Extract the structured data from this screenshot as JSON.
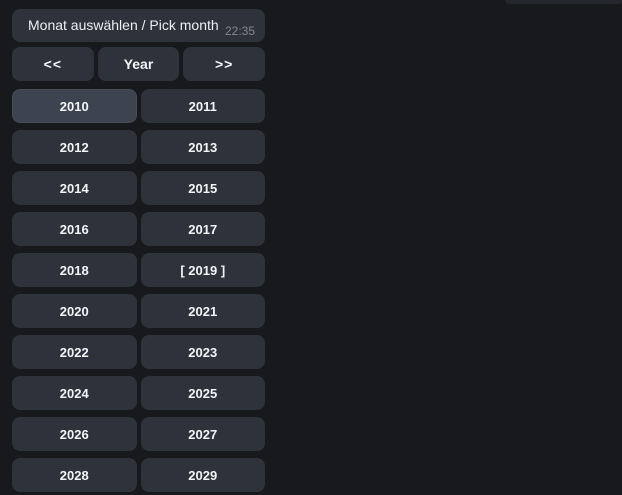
{
  "chat": {
    "message": {
      "text": "Monat auswählen / Pick month",
      "time": "22:35"
    }
  },
  "keyboard": {
    "nav": {
      "prev": "<<",
      "mode": "Year",
      "next": ">>"
    },
    "years": [
      "2010",
      "2011",
      "2012",
      "2013",
      "2014",
      "2015",
      "2016",
      "2017",
      "2018",
      "[ 2019 ]",
      "2020",
      "2021",
      "2022",
      "2023",
      "2024",
      "2025",
      "2026",
      "2027",
      "2028",
      "2029"
    ],
    "selected_label": "[ 2019 ]",
    "highlighted_label": "2010"
  },
  "colors": {
    "background": "#17191d",
    "bubble": "#2d323b",
    "button": "#2d323b",
    "button_highlight": "#3d444f",
    "text": "#eef0f2",
    "button_text": "#f4f5f7",
    "timestamp": "#81888f",
    "outgoing_sliver": "#23262d"
  }
}
